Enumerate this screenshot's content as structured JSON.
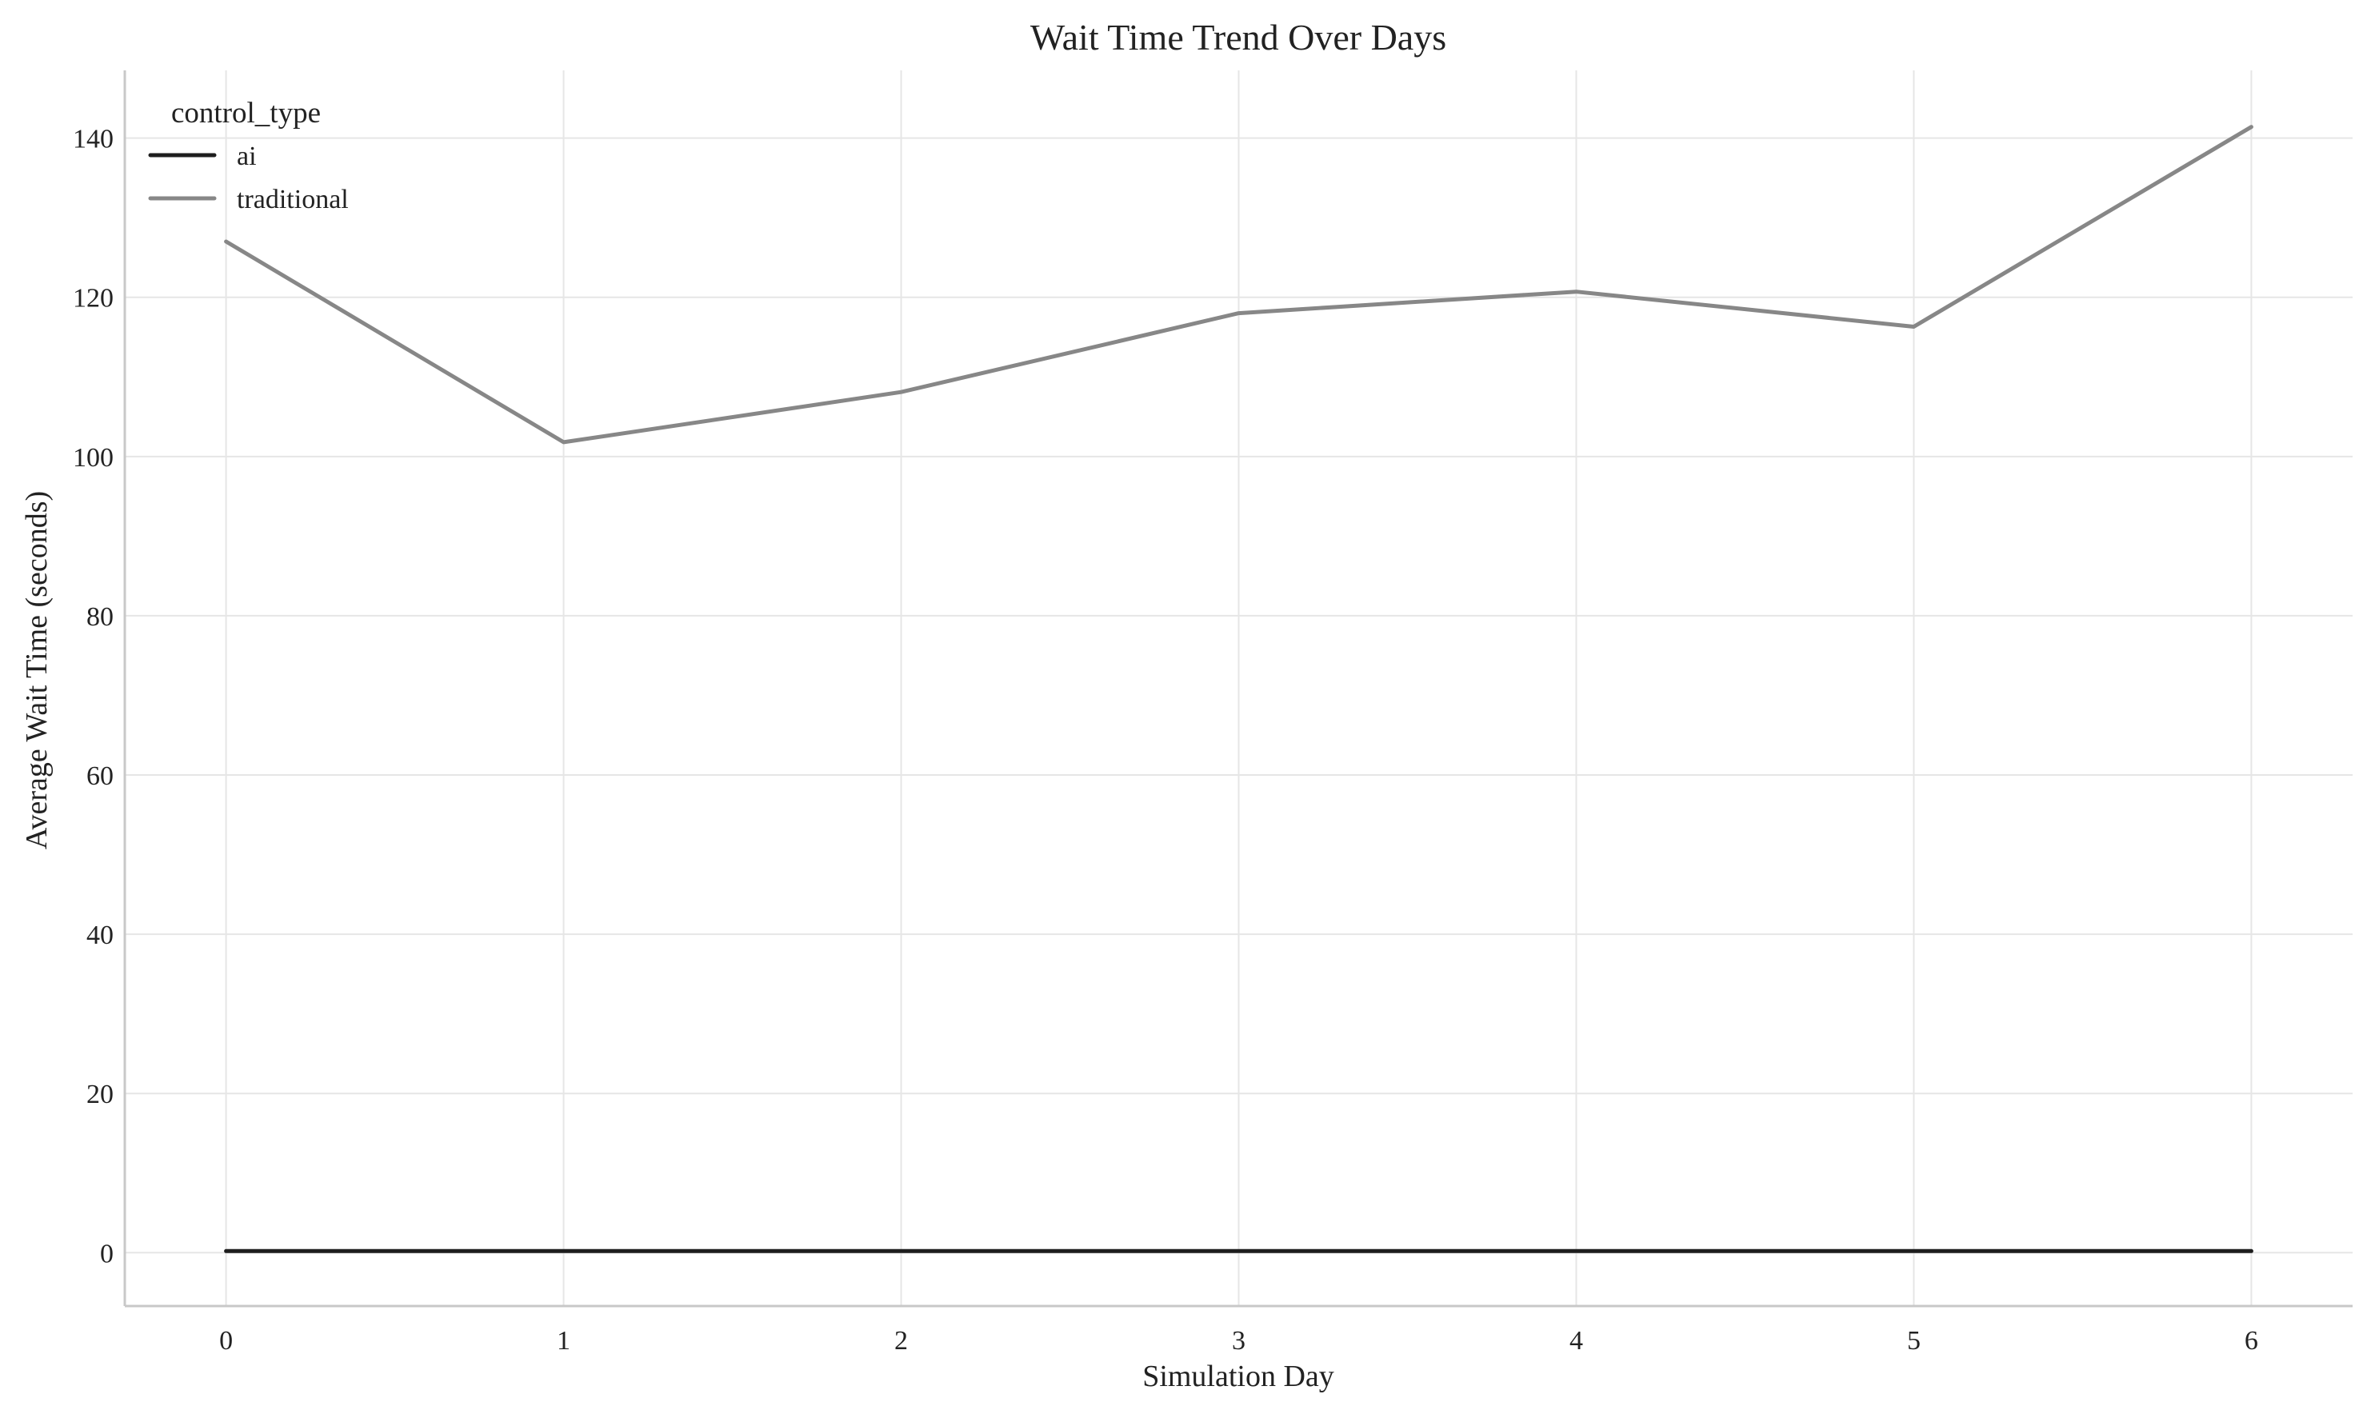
{
  "chart_data": {
    "type": "line",
    "title": "Wait Time Trend Over Days",
    "xlabel": "Simulation Day",
    "ylabel": "Average Wait Time (seconds)",
    "x": [
      0,
      1,
      2,
      3,
      4,
      5,
      6
    ],
    "xlim": [
      -0.3,
      6.3
    ],
    "ylim": [
      -6.7,
      148.5
    ],
    "xticks": [
      0,
      1,
      2,
      3,
      4,
      5,
      6
    ],
    "yticks": [
      0,
      20,
      40,
      60,
      80,
      100,
      120,
      140
    ],
    "grid": true,
    "legend": {
      "title": "control_type",
      "placement": "top-left"
    },
    "series": [
      {
        "name": "ai",
        "color": "#1e1e1e",
        "values": [
          0.2,
          0.2,
          0.2,
          0.2,
          0.2,
          0.2,
          0.2
        ]
      },
      {
        "name": "traditional",
        "color": "#878787",
        "values": [
          127.0,
          101.8,
          108.1,
          118.0,
          120.7,
          116.3,
          141.4
        ]
      }
    ]
  }
}
